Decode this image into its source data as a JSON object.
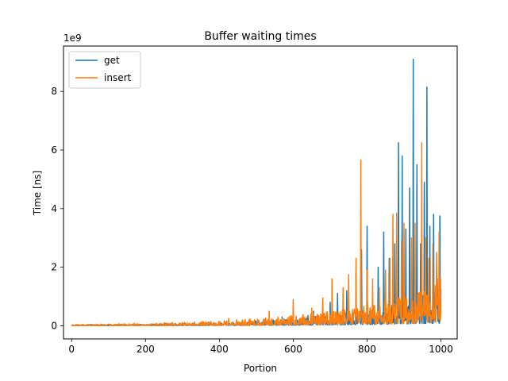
{
  "chart_data": {
    "type": "line",
    "title": "Buffer waiting times",
    "xlabel": "Portion",
    "ylabel": "Time [ns]",
    "y_offset_label": "1e9",
    "xlim": [
      -22,
      1044
    ],
    "ylim": [
      -0.45,
      9.55
    ],
    "x_ticks": [
      0,
      200,
      400,
      600,
      800,
      1000
    ],
    "y_ticks": [
      0,
      2,
      4,
      6,
      8
    ],
    "legend_position": "upper-left",
    "grid": false,
    "x_range": [
      0,
      1000
    ],
    "series": [
      {
        "name": "get",
        "color": "#1f77b4",
        "noise_base": [
          0.02,
          0.02,
          0.03,
          0.04,
          0.05,
          0.08,
          0.12,
          0.18,
          0.25,
          0.4,
          0.6
        ],
        "spikes": [
          [
            570,
            0.3
          ],
          [
            640,
            0.35
          ],
          [
            655,
            0.5
          ],
          [
            700,
            0.8
          ],
          [
            720,
            1.1
          ],
          [
            745,
            1.2
          ],
          [
            770,
            1.8
          ],
          [
            785,
            2.6
          ],
          [
            800,
            3.4
          ],
          [
            830,
            2.0
          ],
          [
            845,
            3.2
          ],
          [
            860,
            2.3
          ],
          [
            875,
            2.8
          ],
          [
            885,
            6.25
          ],
          [
            895,
            5.8
          ],
          [
            905,
            3.3
          ],
          [
            915,
            4.7
          ],
          [
            925,
            9.1
          ],
          [
            935,
            5.5
          ],
          [
            945,
            2.8
          ],
          [
            955,
            4.9
          ],
          [
            962,
            8.15
          ],
          [
            970,
            3.4
          ],
          [
            980,
            3.8
          ],
          [
            990,
            1.6
          ],
          [
            997,
            3.75
          ],
          [
            1000,
            1.25
          ]
        ]
      },
      {
        "name": "insert",
        "color": "#ff7f0e",
        "noise_base": [
          0.02,
          0.03,
          0.04,
          0.06,
          0.08,
          0.12,
          0.17,
          0.24,
          0.35,
          0.5,
          0.75
        ],
        "spikes": [
          [
            170,
            0.08
          ],
          [
            300,
            0.12
          ],
          [
            425,
            0.25
          ],
          [
            535,
            0.5
          ],
          [
            600,
            0.9
          ],
          [
            650,
            0.6
          ],
          [
            680,
            0.95
          ],
          [
            705,
            1.6
          ],
          [
            735,
            1.3
          ],
          [
            750,
            1.75
          ],
          [
            770,
            2.3
          ],
          [
            783,
            5.65
          ],
          [
            800,
            1.9
          ],
          [
            815,
            1.6
          ],
          [
            833,
            1.3
          ],
          [
            850,
            1.9
          ],
          [
            862,
            2.3
          ],
          [
            870,
            3.8
          ],
          [
            880,
            3.85
          ],
          [
            893,
            2.9
          ],
          [
            900,
            3.5
          ],
          [
            920,
            3.0
          ],
          [
            930,
            3.5
          ],
          [
            948,
            6.25
          ],
          [
            958,
            3.0
          ],
          [
            967,
            2.3
          ],
          [
            978,
            2.8
          ],
          [
            988,
            2.5
          ],
          [
            995,
            3.2
          ],
          [
            999,
            1.6
          ]
        ]
      }
    ]
  }
}
